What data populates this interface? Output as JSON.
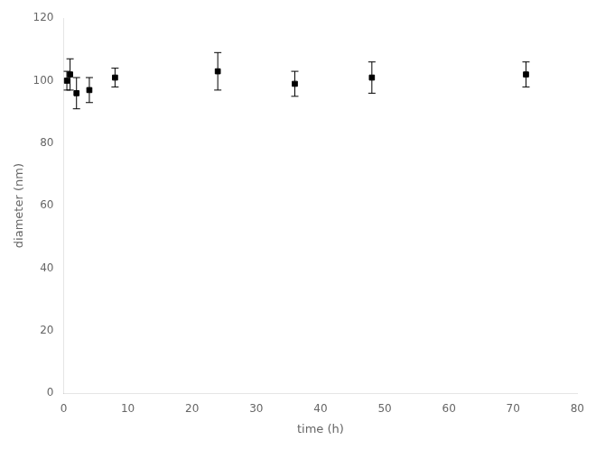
{
  "chart_data": {
    "type": "scatter",
    "x": [
      0.5,
      1,
      2,
      4,
      8,
      24,
      36,
      48,
      72
    ],
    "values": [
      100,
      102,
      96,
      97,
      101,
      103,
      99,
      101,
      102
    ],
    "yerr": [
      3,
      5,
      5,
      4,
      3,
      6,
      4,
      5,
      4
    ],
    "xlabel": "time (h)",
    "ylabel": "diameter (nm)",
    "xlim": [
      0,
      80
    ],
    "ylim": [
      0,
      120
    ],
    "xticks": [
      0,
      10,
      20,
      30,
      40,
      50,
      60,
      70,
      80
    ],
    "yticks": [
      0,
      20,
      40,
      60,
      80,
      100,
      120
    ],
    "marker": "square",
    "color": "black",
    "grid": false
  }
}
